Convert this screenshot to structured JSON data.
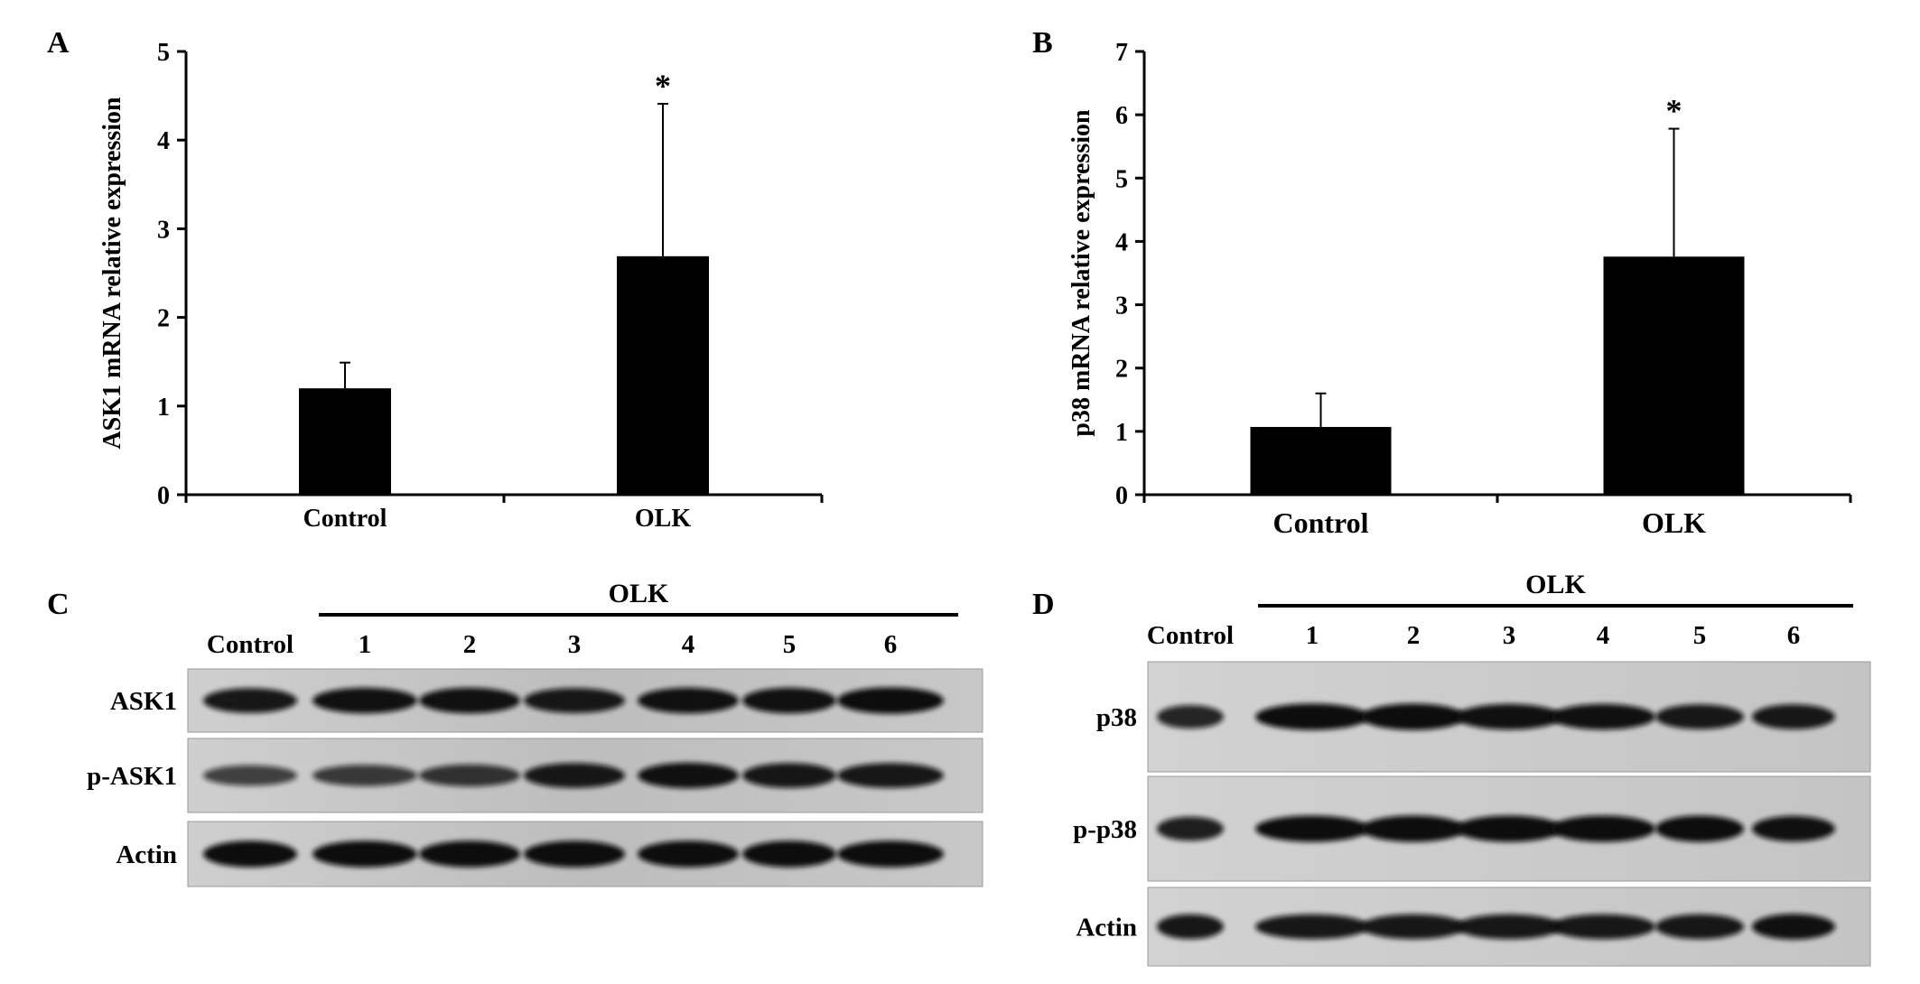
{
  "chart_data": [
    {
      "panel": "A",
      "type": "bar",
      "categories": [
        "Control",
        "OLK"
      ],
      "values": [
        1.2,
        2.69
      ],
      "errors": [
        0.29,
        1.72
      ],
      "significance": [
        "",
        "*"
      ],
      "ylabel": "ASK1 mRNA relative expression",
      "xlabel": "",
      "ylim": [
        0,
        5
      ],
      "yticks": [
        0,
        1,
        2,
        3,
        4,
        5
      ],
      "grid": false
    },
    {
      "panel": "B",
      "type": "bar",
      "categories": [
        "Control",
        "OLK"
      ],
      "values": [
        1.07,
        3.76
      ],
      "errors": [
        0.53,
        2.02
      ],
      "significance": [
        "",
        "*"
      ],
      "ylabel": "p38  mRNA relative expression",
      "xlabel": "",
      "ylim": [
        0,
        7
      ],
      "yticks": [
        0,
        1,
        2,
        3,
        4,
        5,
        6,
        7
      ],
      "grid": false
    }
  ],
  "blots": [
    {
      "panel": "C",
      "group_label": "OLK",
      "lanes": [
        "Control",
        "1",
        "2",
        "3",
        "4",
        "5",
        "6"
      ],
      "rows": [
        {
          "label": "ASK1",
          "intensity": [
            0.85,
            0.9,
            0.9,
            0.85,
            0.9,
            0.9,
            0.95
          ]
        },
        {
          "label": "p-ASK1",
          "intensity": [
            0.55,
            0.6,
            0.65,
            0.85,
            0.9,
            0.85,
            0.85
          ]
        },
        {
          "label": "Actin",
          "intensity": [
            0.95,
            0.95,
            0.95,
            0.95,
            0.95,
            0.95,
            0.95
          ]
        }
      ]
    },
    {
      "panel": "D",
      "group_label": "OLK",
      "lanes": [
        "Control",
        "1",
        "2",
        "3",
        "4",
        "5",
        "6"
      ],
      "rows": [
        {
          "label": "p38",
          "intensity": [
            0.75,
            0.95,
            0.95,
            0.9,
            0.9,
            0.85,
            0.85
          ]
        },
        {
          "label": "p-p38",
          "intensity": [
            0.8,
            0.95,
            0.95,
            0.95,
            0.95,
            0.95,
            0.9
          ]
        },
        {
          "label": "Actin",
          "intensity": [
            0.85,
            0.85,
            0.85,
            0.85,
            0.85,
            0.85,
            0.9
          ]
        }
      ]
    }
  ],
  "colors": {
    "bar": "#000000",
    "axis": "#000000",
    "membrane_light": "#d6d6d6",
    "band": "#0c0c0c"
  }
}
